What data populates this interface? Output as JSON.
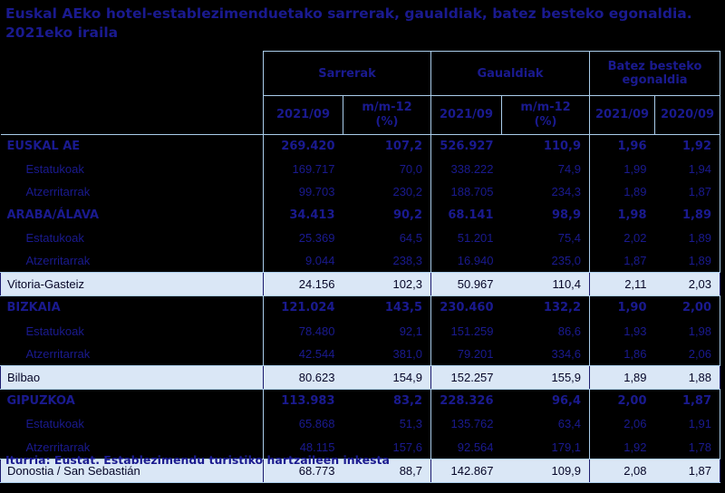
{
  "title": {
    "line1": "Euskal AEko hotel-establezimenduetako sarrerak, gaualdiak, batez besteko egonaldia.",
    "line2": "2021eko iraila"
  },
  "table": {
    "groups": [
      {
        "label": "Sarrerak",
        "sub": [
          "2021/09",
          "m/m-12\n(%)"
        ]
      },
      {
        "label": "Gaualdiak",
        "sub": [
          "2021/09",
          "m/m-12\n(%)"
        ]
      },
      {
        "label": "Batez besteko\negonaldia",
        "sub": [
          "2021/09",
          "2020/09"
        ]
      }
    ],
    "rows": [
      {
        "label": "EUSKAL AE",
        "style": "province",
        "values": [
          "269.420",
          "107,2",
          "526.927",
          "110,9",
          "1,96",
          "1,92"
        ]
      },
      {
        "label": "Estatukoak",
        "style": "sub",
        "values": [
          "169.717",
          "70,0",
          "338.222",
          "74,9",
          "1,99",
          "1,94"
        ]
      },
      {
        "label": "Atzerritarrak",
        "style": "sub",
        "values": [
          "99.703",
          "230,2",
          "188.705",
          "234,3",
          "1,89",
          "1,87"
        ]
      },
      {
        "label": "ARABA/ÁLAVA",
        "style": "province",
        "values": [
          "34.413",
          "90,2",
          "68.141",
          "98,9",
          "1,98",
          "1,89"
        ]
      },
      {
        "label": "Estatukoak",
        "style": "sub",
        "values": [
          "25.369",
          "64,5",
          "51.201",
          "75,4",
          "2,02",
          "1,89"
        ]
      },
      {
        "label": "Atzerritarrak",
        "style": "sub",
        "values": [
          "9.044",
          "238,3",
          "16.940",
          "235,0",
          "1,87",
          "1,89"
        ]
      },
      {
        "label": "Vitoria-Gasteiz",
        "style": "city",
        "values": [
          "24.156",
          "102,3",
          "50.967",
          "110,4",
          "2,11",
          "2,03"
        ]
      },
      {
        "label": "BIZKAIA",
        "style": "province",
        "values": [
          "121.024",
          "143,5",
          "230.460",
          "132,2",
          "1,90",
          "2,00"
        ]
      },
      {
        "label": "Estatukoak",
        "style": "sub",
        "values": [
          "78.480",
          "92,1",
          "151.259",
          "86,6",
          "1,93",
          "1,98"
        ]
      },
      {
        "label": "Atzerritarrak",
        "style": "sub",
        "values": [
          "42.544",
          "381,0",
          "79.201",
          "334,6",
          "1,86",
          "2,06"
        ]
      },
      {
        "label": "Bilbao",
        "style": "city",
        "values": [
          "80.623",
          "154,9",
          "152.257",
          "155,9",
          "1,89",
          "1,88"
        ]
      },
      {
        "label": "GIPUZKOA",
        "style": "province",
        "values": [
          "113.983",
          "83,2",
          "228.326",
          "96,4",
          "2,00",
          "1,87"
        ]
      },
      {
        "label": "Estatukoak",
        "style": "sub",
        "values": [
          "65.868",
          "51,3",
          "135.762",
          "63,4",
          "2,06",
          "1,91"
        ]
      },
      {
        "label": "Atzerritarrak",
        "style": "sub",
        "values": [
          "48.115",
          "157,6",
          "92.564",
          "179,1",
          "1,92",
          "1,78"
        ]
      },
      {
        "label": "Donostia / San Sebastián",
        "style": "city",
        "values": [
          "68.773",
          "88,7",
          "142.867",
          "109,9",
          "2,08",
          "1,87"
        ]
      }
    ]
  },
  "source_note": "Iturria: Eustat. Establezimendu turistiko hartzaileen inkesta",
  "colors": {
    "background": "#000000",
    "navy_text": "#1a1a8f",
    "border_light_blue": "#aacdeb",
    "city_row_background": "#dae7f6",
    "city_row_text": "#050527",
    "city_row_border": "#1b1b6e"
  }
}
